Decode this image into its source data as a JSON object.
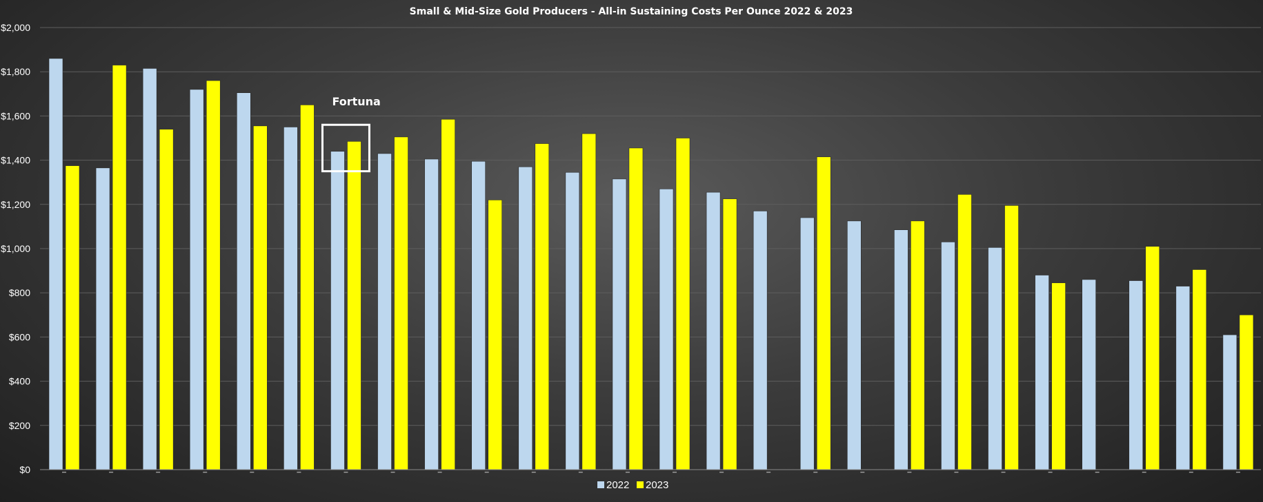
{
  "chart_data": {
    "type": "bar",
    "title": "Small & Mid-Size Gold Producers - All-in Sustaining Costs Per Ounce 2022 & 2023",
    "xlabel": "",
    "ylabel": "",
    "ylim": [
      0,
      2000
    ],
    "y_ticks": [
      {
        "value": 0,
        "label": "$0"
      },
      {
        "value": 200,
        "label": "$200"
      },
      {
        "value": 400,
        "label": "$400"
      },
      {
        "value": 600,
        "label": "$600"
      },
      {
        "value": 800,
        "label": "$800"
      },
      {
        "value": 1000,
        "label": "$1,000"
      },
      {
        "value": 1200,
        "label": "$1,200"
      },
      {
        "value": 1400,
        "label": "$1,400"
      },
      {
        "value": 1600,
        "label": "$1,600"
      },
      {
        "value": 1800,
        "label": "$1,800"
      },
      {
        "value": 2000,
        "label": "$2,000"
      }
    ],
    "category_count": 26,
    "series": [
      {
        "name": "2022",
        "color": "#bdd7ee",
        "values": [
          1860,
          1365,
          1815,
          1720,
          1705,
          1550,
          1440,
          1430,
          1405,
          1395,
          1370,
          1345,
          1315,
          1270,
          1255,
          1170,
          1140,
          1125,
          1085,
          1030,
          1005,
          880,
          860,
          855,
          830,
          610
        ]
      },
      {
        "name": "2023",
        "color": "#ffff00",
        "values": [
          1375,
          1830,
          1540,
          1760,
          1555,
          1650,
          1485,
          1505,
          1585,
          1220,
          1475,
          1520,
          1455,
          1500,
          1225,
          null,
          1415,
          null,
          1125,
          1245,
          1195,
          845,
          null,
          1010,
          905,
          700
        ]
      }
    ],
    "grid": true,
    "legend_position": "bottom",
    "annotation": {
      "text": "Fortuna",
      "category_index": 6,
      "box_low": 1350,
      "box_high": 1560
    }
  }
}
